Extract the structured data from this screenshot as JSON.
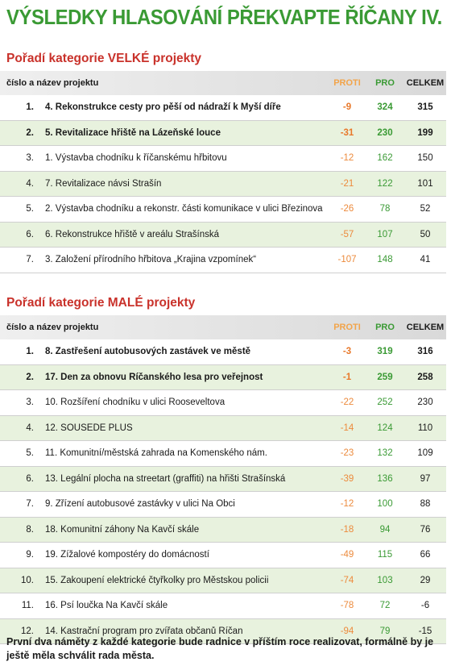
{
  "title": "VÝSLEDKY HLASOVÁNÍ PŘEKVAPTE ŘÍČANY IV.",
  "headers": {
    "name": "číslo a název projektu",
    "proti": "PROTI",
    "pro": "PRO",
    "celkem": "CELKEM"
  },
  "sections": [
    {
      "title": "Pořadí kategorie VELKÉ projekty",
      "rows": [
        {
          "rank": "1.",
          "name": "4. Rekonstrukce cesty pro pěší od nádraží k Myší díře",
          "proti": "-9",
          "pro": "324",
          "celkem": "315",
          "bold": true
        },
        {
          "rank": "2.",
          "name": "5. Revitalizace hřiště na Lázeňské louce",
          "proti": "-31",
          "pro": "230",
          "celkem": "199",
          "bold": true
        },
        {
          "rank": "3.",
          "name": "1. Výstavba chodníku k říčanskému hřbitovu",
          "proti": "-12",
          "pro": "162",
          "celkem": "150",
          "bold": false
        },
        {
          "rank": "4.",
          "name": "7. Revitalizace návsi Strašín",
          "proti": "-21",
          "pro": "122",
          "celkem": "101",
          "bold": false
        },
        {
          "rank": "5.",
          "name": "2. Výstavba chodníku a rekonstr. části komunikace v ulici Březinova",
          "proti": "-26",
          "pro": "78",
          "celkem": "52",
          "bold": false
        },
        {
          "rank": "6.",
          "name": "6. Rekonstrukce hřiště v areálu Strašínská",
          "proti": "-57",
          "pro": "107",
          "celkem": "50",
          "bold": false
        },
        {
          "rank": "7.",
          "name": "3. Založení přírodního hřbitova „Krajina vzpomínek“",
          "proti": "-107",
          "pro": "148",
          "celkem": "41",
          "bold": false
        }
      ]
    },
    {
      "title": "Pořadí kategorie MALÉ projekty",
      "rows": [
        {
          "rank": "1.",
          "name": "8. Zastřešení autobusových zastávek ve městě",
          "proti": "-3",
          "pro": "319",
          "celkem": "316",
          "bold": true
        },
        {
          "rank": "2.",
          "name": "17. Den za obnovu Říčanského lesa pro veřejnost",
          "proti": "-1",
          "pro": "259",
          "celkem": "258",
          "bold": true
        },
        {
          "rank": "3.",
          "name": "10. Rozšíření chodníku v ulici Rooseveltova",
          "proti": "-22",
          "pro": "252",
          "celkem": "230",
          "bold": false
        },
        {
          "rank": "4.",
          "name": "12. SOUSEDÉ PLUS",
          "proti": "-14",
          "pro": "124",
          "celkem": "110",
          "bold": false
        },
        {
          "rank": "5.",
          "name": "11. Komunitní/městská zahrada na Komenského nám.",
          "proti": "-23",
          "pro": "132",
          "celkem": "109",
          "bold": false
        },
        {
          "rank": "6.",
          "name": "13. Legální plocha na streetart (graffiti) na hřišti Strašínská",
          "proti": "-39",
          "pro": "136",
          "celkem": "97",
          "bold": false
        },
        {
          "rank": "7.",
          "name": "9. Zřízení autobusové zastávky v ulici Na Obci",
          "proti": "-12",
          "pro": "100",
          "celkem": "88",
          "bold": false
        },
        {
          "rank": "8.",
          "name": "18. Komunitní záhony Na Kavčí skále",
          "proti": "-18",
          "pro": "94",
          "celkem": "76",
          "bold": false
        },
        {
          "rank": "9.",
          "name": "19. Žížalové kompostéry do domácností",
          "proti": "-49",
          "pro": "115",
          "celkem": "66",
          "bold": false
        },
        {
          "rank": "10.",
          "name": "15. Zakoupení elektrické čtyřkolky pro Městskou policii",
          "proti": "-74",
          "pro": "103",
          "celkem": "29",
          "bold": false
        },
        {
          "rank": "11.",
          "name": "16. Psí loučka Na Kavčí skále",
          "proti": "-78",
          "pro": "72",
          "celkem": "-6",
          "bold": false
        },
        {
          "rank": "12.",
          "name": "14. Kastrační program pro zvířata občanů Říčan",
          "proti": "-94",
          "pro": "79",
          "celkem": "-15",
          "bold": false
        }
      ]
    }
  ],
  "footer": "První dva náměty z každé kategorie bude radnice v příštím roce realizovat, formálně by je ještě měla schválit rada města."
}
